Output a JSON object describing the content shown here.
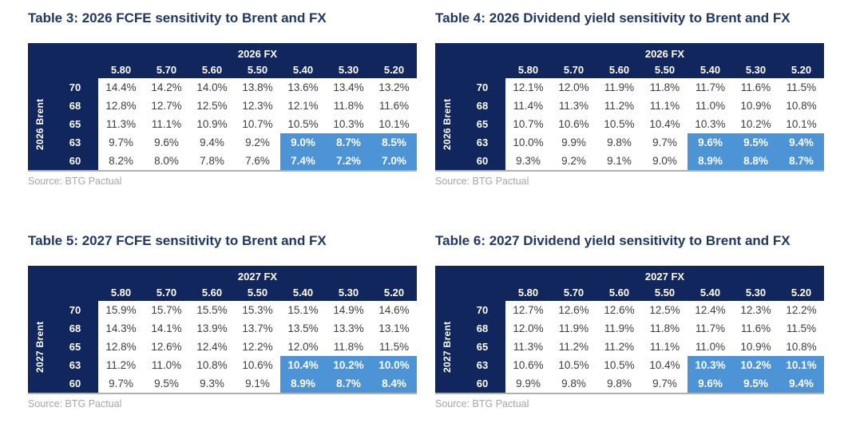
{
  "colors": {
    "navy": "#12265e",
    "highlight_blue": "#4d94d7",
    "title_blue": "#1f3864",
    "cell_text": "#3e3e3e",
    "source_gray": "#a6a6a6",
    "rule_gray": "#b0b0b0"
  },
  "tables": [
    {
      "title": "Table 3: 2026 FCFE sensitivity to Brent and FX",
      "fx_header": "2026 FX",
      "brent_label": "2026 Brent",
      "fx_values": [
        "5.80",
        "5.70",
        "5.60",
        "5.50",
        "5.40",
        "5.30",
        "5.20"
      ],
      "brent_values": [
        "70",
        "68",
        "65",
        "63",
        "60"
      ],
      "rows": [
        [
          "14.4%",
          "14.2%",
          "14.0%",
          "13.8%",
          "13.6%",
          "13.4%",
          "13.2%"
        ],
        [
          "12.8%",
          "12.7%",
          "12.5%",
          "12.3%",
          "12.1%",
          "11.8%",
          "11.6%"
        ],
        [
          "11.3%",
          "11.1%",
          "10.9%",
          "10.7%",
          "10.5%",
          "10.3%",
          "10.1%"
        ],
        [
          "9.7%",
          "9.6%",
          "9.4%",
          "9.2%",
          "9.0%",
          "8.7%",
          "8.5%"
        ],
        [
          "8.2%",
          "8.0%",
          "7.8%",
          "7.6%",
          "7.4%",
          "7.2%",
          "7.0%"
        ]
      ],
      "highlight_rows": [
        3,
        4
      ],
      "highlight_cols": [
        4,
        5,
        6
      ],
      "source": "Source: BTG Pactual"
    },
    {
      "title": "Table 4: 2026 Dividend yield sensitivity to Brent and FX",
      "fx_header": "2026 FX",
      "brent_label": "2026 Brent",
      "fx_values": [
        "5.80",
        "5.70",
        "5.60",
        "5.50",
        "5.40",
        "5.30",
        "5.20"
      ],
      "brent_values": [
        "70",
        "68",
        "65",
        "63",
        "60"
      ],
      "rows": [
        [
          "12.1%",
          "12.0%",
          "11.9%",
          "11.8%",
          "11.7%",
          "11.6%",
          "11.5%"
        ],
        [
          "11.4%",
          "11.3%",
          "11.2%",
          "11.1%",
          "11.0%",
          "10.9%",
          "10.8%"
        ],
        [
          "10.7%",
          "10.6%",
          "10.5%",
          "10.4%",
          "10.3%",
          "10.2%",
          "10.1%"
        ],
        [
          "10.0%",
          "9.9%",
          "9.8%",
          "9.7%",
          "9.6%",
          "9.5%",
          "9.4%"
        ],
        [
          "9.3%",
          "9.2%",
          "9.1%",
          "9.0%",
          "8.9%",
          "8.8%",
          "8.7%"
        ]
      ],
      "highlight_rows": [
        3,
        4
      ],
      "highlight_cols": [
        4,
        5,
        6
      ],
      "source": "Source: BTG Pactual"
    },
    {
      "title": "Table 5: 2027 FCFE sensitivity to Brent and FX",
      "fx_header": "2027 FX",
      "brent_label": "2027 Brent",
      "fx_values": [
        "5.80",
        "5.70",
        "5.60",
        "5.50",
        "5.40",
        "5.30",
        "5.20"
      ],
      "brent_values": [
        "70",
        "68",
        "65",
        "63",
        "60"
      ],
      "rows": [
        [
          "15.9%",
          "15.7%",
          "15.5%",
          "15.3%",
          "15.1%",
          "14.9%",
          "14.6%"
        ],
        [
          "14.3%",
          "14.1%",
          "13.9%",
          "13.7%",
          "13.5%",
          "13.3%",
          "13.1%"
        ],
        [
          "12.8%",
          "12.6%",
          "12.4%",
          "12.2%",
          "12.0%",
          "11.8%",
          "11.5%"
        ],
        [
          "11.2%",
          "11.0%",
          "10.8%",
          "10.6%",
          "10.4%",
          "10.2%",
          "10.0%"
        ],
        [
          "9.7%",
          "9.5%",
          "9.3%",
          "9.1%",
          "8.9%",
          "8.7%",
          "8.4%"
        ]
      ],
      "highlight_rows": [
        3,
        4
      ],
      "highlight_cols": [
        4,
        5,
        6
      ],
      "source": "Source: BTG Pactual"
    },
    {
      "title": "Table 6: 2027 Dividend yield sensitivity to Brent and FX",
      "fx_header": "2027 FX",
      "brent_label": "2027 Brent",
      "fx_values": [
        "5.80",
        "5.70",
        "5.60",
        "5.50",
        "5.40",
        "5.30",
        "5.20"
      ],
      "brent_values": [
        "70",
        "68",
        "65",
        "63",
        "60"
      ],
      "rows": [
        [
          "12.7%",
          "12.6%",
          "12.6%",
          "12.5%",
          "12.4%",
          "12.3%",
          "12.2%"
        ],
        [
          "12.0%",
          "11.9%",
          "11.9%",
          "11.8%",
          "11.7%",
          "11.6%",
          "11.5%"
        ],
        [
          "11.3%",
          "11.2%",
          "11.2%",
          "11.1%",
          "11.0%",
          "10.9%",
          "10.8%"
        ],
        [
          "10.6%",
          "10.5%",
          "10.5%",
          "10.4%",
          "10.3%",
          "10.2%",
          "10.1%"
        ],
        [
          "9.9%",
          "9.8%",
          "9.8%",
          "9.7%",
          "9.6%",
          "9.5%",
          "9.4%"
        ]
      ],
      "highlight_rows": [
        3,
        4
      ],
      "highlight_cols": [
        4,
        5,
        6
      ],
      "source": "Source: BTG Pactual"
    }
  ]
}
